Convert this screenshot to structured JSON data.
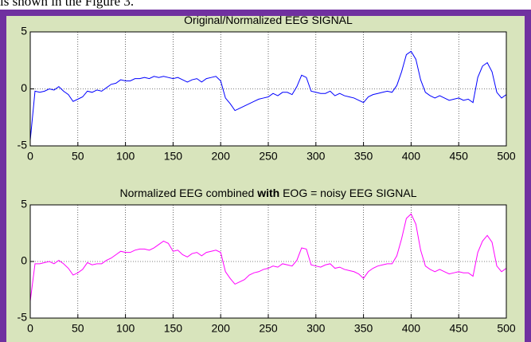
{
  "caption": "is shown in the Figure 3.",
  "chart_data": [
    {
      "type": "line",
      "title": [
        "Original/Normalized EEG SIGNAL"
      ],
      "x": [
        0,
        5,
        10,
        15,
        20,
        25,
        30,
        35,
        40,
        45,
        50,
        55,
        60,
        65,
        70,
        75,
        80,
        85,
        90,
        95,
        100,
        105,
        110,
        115,
        120,
        125,
        130,
        135,
        140,
        145,
        150,
        155,
        160,
        165,
        170,
        175,
        180,
        185,
        190,
        195,
        200,
        205,
        210,
        215,
        220,
        225,
        230,
        235,
        240,
        245,
        250,
        255,
        260,
        265,
        270,
        275,
        280,
        285,
        290,
        295,
        300,
        305,
        310,
        315,
        320,
        325,
        330,
        335,
        340,
        345,
        350,
        355,
        360,
        365,
        370,
        375,
        380,
        385,
        390,
        395,
        400,
        405,
        410,
        415,
        420,
        425,
        430,
        435,
        440,
        445,
        450,
        455,
        460,
        465,
        470,
        475,
        480,
        485,
        490,
        495,
        500
      ],
      "series": [
        {
          "color": "#0000ff",
          "values": [
            -4.5,
            -0.2,
            -0.3,
            -0.2,
            0,
            -0.1,
            0.2,
            -0.2,
            -0.5,
            -1.1,
            -0.9,
            -0.7,
            -0.2,
            -0.3,
            -0.1,
            -0.2,
            0.1,
            0.4,
            0.5,
            0.8,
            0.7,
            0.7,
            0.9,
            0.9,
            1.0,
            0.9,
            1.1,
            1.0,
            1.1,
            1.0,
            0.9,
            1.0,
            0.8,
            0.6,
            0.8,
            0.9,
            0.6,
            0.9,
            1.0,
            1.1,
            0.7,
            -0.8,
            -1.3,
            -1.9,
            -1.7,
            -1.5,
            -1.3,
            -1.1,
            -0.9,
            -0.8,
            -0.7,
            -0.4,
            -0.6,
            -0.3,
            -0.3,
            -0.5,
            0.2,
            1.2,
            1.0,
            -0.2,
            -0.3,
            -0.4,
            -0.4,
            -0.2,
            -0.6,
            -0.4,
            -0.6,
            -0.7,
            -0.8,
            -1.0,
            -1.2,
            -0.7,
            -0.5,
            -0.4,
            -0.3,
            -0.2,
            -0.3,
            0.3,
            1.5,
            3.0,
            3.3,
            2.6,
            0.8,
            -0.3,
            -0.6,
            -0.8,
            -0.6,
            -0.8,
            -1.0,
            -0.9,
            -0.8,
            -1.0,
            -0.9,
            -1.2,
            1.0,
            2.0,
            2.3,
            1.5,
            -0.3,
            -0.8,
            -0.5
          ]
        }
      ],
      "xlim": [
        0,
        500
      ],
      "xticks": [
        0,
        50,
        100,
        150,
        200,
        250,
        300,
        350,
        400,
        450,
        500
      ],
      "ylim": [
        -5,
        5
      ],
      "yticks": [
        -5,
        0,
        5
      ],
      "grid": true
    },
    {
      "type": "line",
      "title": [
        "Normalized EEG combined ",
        "with",
        " EOG = noisy EEG SIGNAL"
      ],
      "x": [
        0,
        5,
        10,
        15,
        20,
        25,
        30,
        35,
        40,
        45,
        50,
        55,
        60,
        65,
        70,
        75,
        80,
        85,
        90,
        95,
        100,
        105,
        110,
        115,
        120,
        125,
        130,
        135,
        140,
        145,
        150,
        155,
        160,
        165,
        170,
        175,
        180,
        185,
        190,
        195,
        200,
        205,
        210,
        215,
        220,
        225,
        230,
        235,
        240,
        245,
        250,
        255,
        260,
        265,
        270,
        275,
        280,
        285,
        290,
        295,
        300,
        305,
        310,
        315,
        320,
        325,
        330,
        335,
        340,
        345,
        350,
        355,
        360,
        365,
        370,
        375,
        380,
        385,
        390,
        395,
        400,
        405,
        410,
        415,
        420,
        425,
        430,
        435,
        440,
        445,
        450,
        455,
        460,
        465,
        470,
        475,
        480,
        485,
        490,
        495,
        500
      ],
      "series": [
        {
          "color": "#ff00ff",
          "values": [
            -3.5,
            -0.2,
            -0.2,
            -0.1,
            0,
            -0.2,
            0.1,
            -0.2,
            -0.6,
            -1.2,
            -1.0,
            -0.7,
            -0.1,
            -0.3,
            -0.2,
            -0.2,
            0.1,
            0.3,
            0.6,
            0.9,
            0.8,
            0.8,
            1.0,
            1.1,
            1.1,
            1.0,
            1.2,
            1.5,
            1.8,
            1.6,
            0.9,
            1.0,
            0.6,
            0.4,
            0.7,
            0.8,
            0.5,
            0.8,
            0.9,
            1.0,
            0.8,
            -0.9,
            -1.5,
            -2.0,
            -1.8,
            -1.6,
            -1.2,
            -1.0,
            -0.9,
            -0.7,
            -0.6,
            -0.4,
            -0.5,
            -0.2,
            -0.3,
            -0.4,
            0.1,
            1.2,
            1.1,
            -0.3,
            -0.4,
            -0.5,
            -0.3,
            -0.2,
            -0.6,
            -0.5,
            -0.7,
            -0.8,
            -0.9,
            -1.1,
            -1.5,
            -0.9,
            -0.6,
            -0.4,
            -0.3,
            -0.2,
            -0.2,
            0.5,
            2.0,
            3.8,
            4.2,
            3.3,
            1.0,
            -0.4,
            -0.7,
            -0.9,
            -0.7,
            -0.9,
            -1.1,
            -1.0,
            -0.9,
            -1.0,
            -1.0,
            -1.3,
            0.8,
            1.8,
            2.3,
            1.7,
            -0.4,
            -0.9,
            -0.6
          ]
        }
      ],
      "xlim": [
        0,
        500
      ],
      "xticks": [
        0,
        50,
        100,
        150,
        200,
        250,
        300,
        350,
        400,
        450,
        500
      ],
      "ylim": [
        -5,
        5
      ],
      "yticks": [
        -5,
        0,
        5
      ],
      "grid": true
    }
  ]
}
